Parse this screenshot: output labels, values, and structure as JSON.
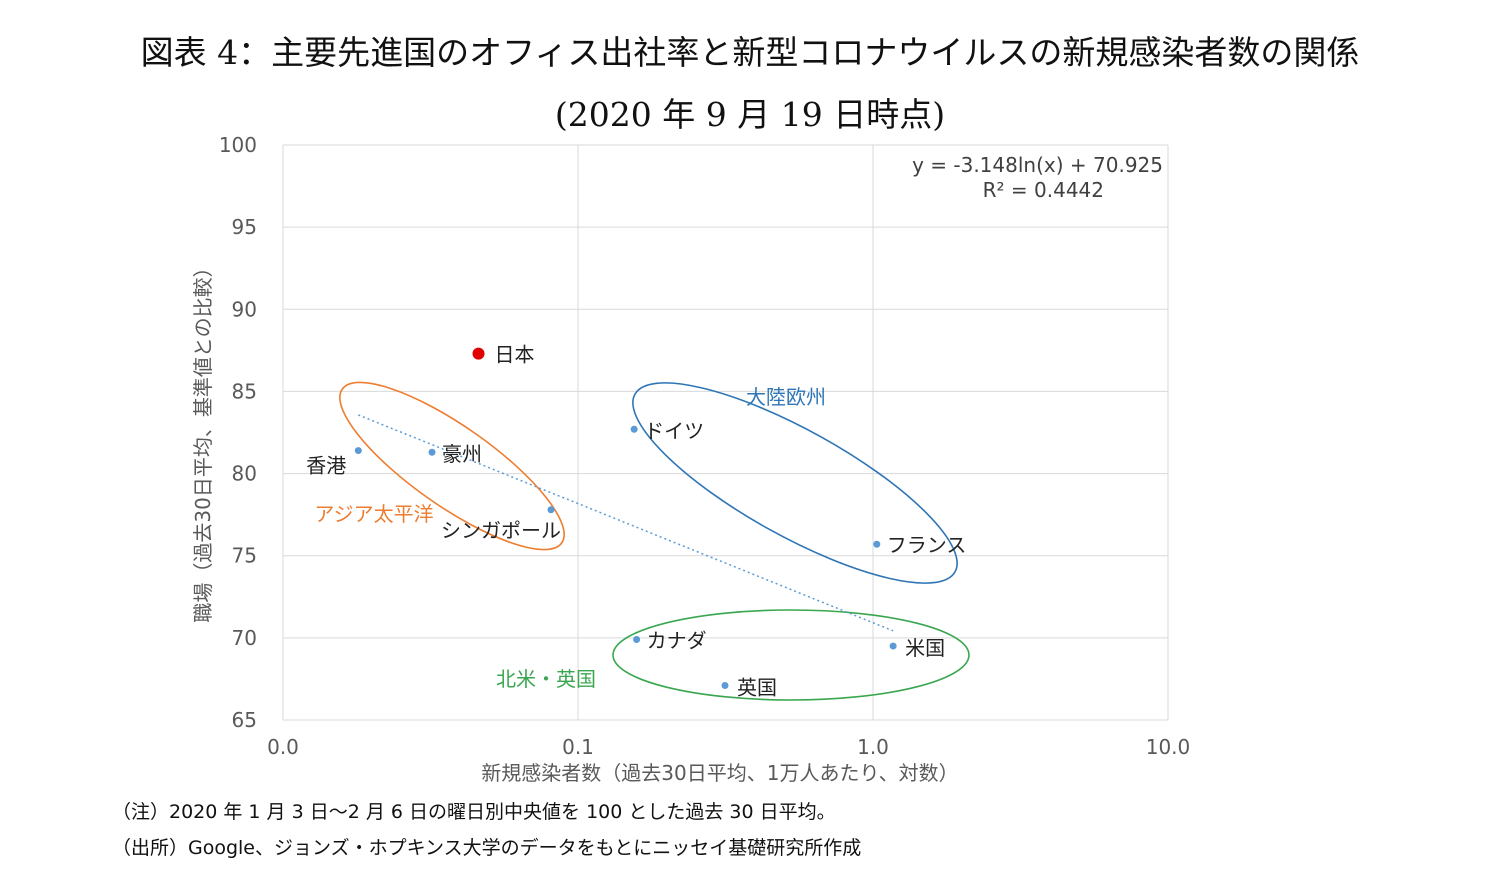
{
  "title_line1": "図表 4：主要先進国のオフィス出社率と新型コロナウイルスの新規感染者数の関係",
  "title_line2": "(2020 年 9 月 19 日時点)",
  "chart_data": {
    "type": "scatter",
    "xscale": "log",
    "xlim": [
      0.01,
      10.0
    ],
    "ylim": [
      65,
      100
    ],
    "x_ticks": [
      0.01,
      0.1,
      1.0,
      10.0
    ],
    "x_tick_labels": [
      "0.0",
      "0.1",
      "1.0",
      "10.0"
    ],
    "y_ticks": [
      65,
      70,
      75,
      80,
      85,
      90,
      95,
      100
    ],
    "xlabel": "新規感染者数（過去30日平均、1万人あたり、対数）",
    "ylabel": "職場（過去30日平均、基準値との比較）",
    "grid": true,
    "points": [
      {
        "label": "日本",
        "x": 0.046,
        "y": 87.3,
        "color": "#e00000",
        "highlight": true
      },
      {
        "label": "香港",
        "x": 0.018,
        "y": 81.4,
        "color": "#5b9bd5"
      },
      {
        "label": "豪州",
        "x": 0.032,
        "y": 81.3,
        "color": "#5b9bd5"
      },
      {
        "label": "シンガポール",
        "x": 0.081,
        "y": 77.8,
        "color": "#5b9bd5"
      },
      {
        "label": "ドイツ",
        "x": 0.155,
        "y": 82.7,
        "color": "#5b9bd5"
      },
      {
        "label": "フランス",
        "x": 1.03,
        "y": 75.7,
        "color": "#5b9bd5"
      },
      {
        "label": "カナダ",
        "x": 0.158,
        "y": 69.9,
        "color": "#5b9bd5"
      },
      {
        "label": "英国",
        "x": 0.315,
        "y": 67.1,
        "color": "#5b9bd5"
      },
      {
        "label": "米国",
        "x": 1.17,
        "y": 69.5,
        "color": "#5b9bd5"
      }
    ],
    "trendline": {
      "type": "logarithmic",
      "equation": "y = -3.148ln(x) + 70.925",
      "r_squared": "R² = 0.4442",
      "slope": -3.148,
      "intercept": 70.925,
      "x_range": [
        0.018,
        1.17
      ],
      "color": "#5b9bd5"
    },
    "groups": [
      {
        "label": "アジア太平洋",
        "color": "#ed7d31"
      },
      {
        "label": "大陸欧州",
        "color": "#2e75b6"
      },
      {
        "label": "北米・英国",
        "color": "#3aa64f"
      }
    ]
  },
  "notes": [
    "（注）2020 年 1 月 3 日～2 月 6 日の曜日別中央値を 100 とした過去 30 日平均。",
    "（出所）Google、ジョンズ・ホプキンス大学のデータをもとにニッセイ基礎研究所作成"
  ]
}
